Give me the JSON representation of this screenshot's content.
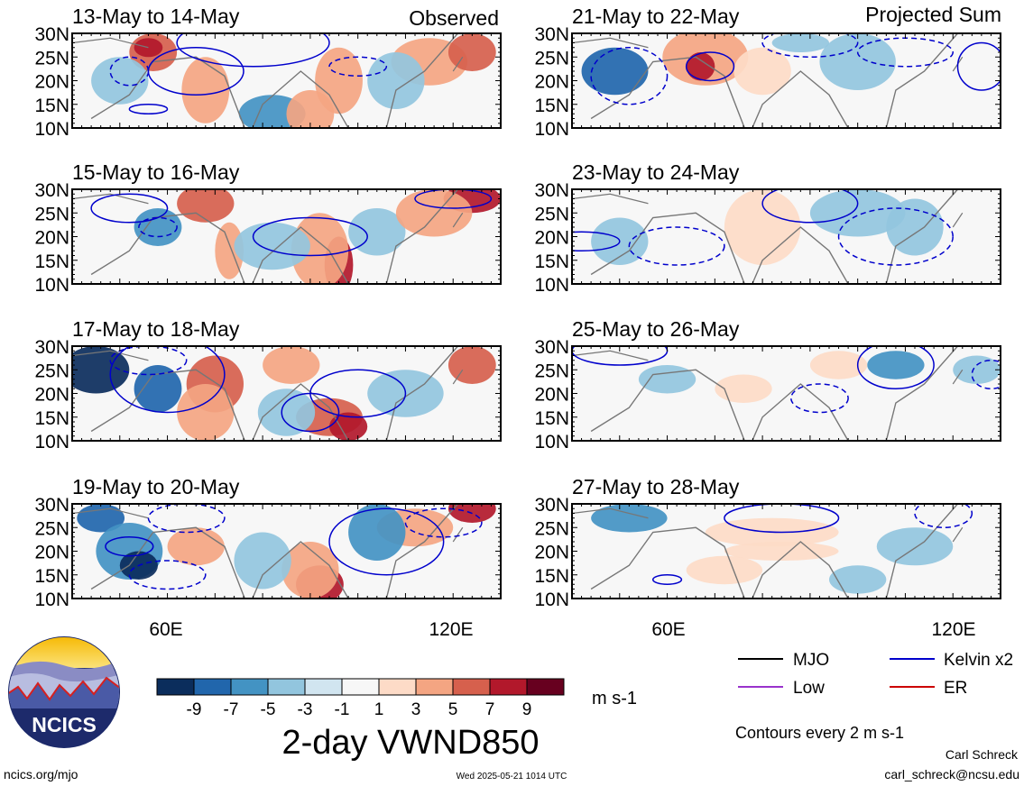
{
  "figure_title": "2-day VWND850",
  "units": "m s-1",
  "column_labels": {
    "observed": "Observed",
    "projected": "Projected Sum"
  },
  "panels": [
    {
      "col": 0,
      "row": 0,
      "label": "13-May to 14-May"
    },
    {
      "col": 0,
      "row": 1,
      "label": "15-May to 16-May"
    },
    {
      "col": 0,
      "row": 2,
      "label": "17-May to 18-May"
    },
    {
      "col": 0,
      "row": 3,
      "label": "19-May to 20-May"
    },
    {
      "col": 1,
      "row": 0,
      "label": "21-May to 22-May"
    },
    {
      "col": 1,
      "row": 1,
      "label": "23-May to 24-May"
    },
    {
      "col": 1,
      "row": 2,
      "label": "25-May to 26-May"
    },
    {
      "col": 1,
      "row": 3,
      "label": "27-May to 28-May"
    }
  ],
  "colorbar": {
    "colors": [
      "#0b2d5c",
      "#2166ac",
      "#4393c3",
      "#92c5de",
      "#d1e5f0",
      "#f7f7f7",
      "#fddbc7",
      "#f4a582",
      "#d6604d",
      "#b2182b",
      "#67001f"
    ],
    "tick_labels": [
      "-9",
      "-7",
      "-5",
      "-3",
      "-1",
      "1",
      "3",
      "5",
      "7",
      "9"
    ]
  },
  "legend": [
    {
      "label": "MJO",
      "color": "#000000"
    },
    {
      "label": "Kelvin x2",
      "color": "#0000cc"
    },
    {
      "label": "Low",
      "color": "#9933cc"
    },
    {
      "label": "ER",
      "color": "#cc0000"
    }
  ],
  "contour_note": "Contours every 2 m s-1",
  "logo_text": "NCICS",
  "url": "ncics.org/mjo",
  "timestamp": "Wed 2025-05-21 1014 UTC",
  "author": "Carl Schreck",
  "email": "carl_schreck@ncsu.edu",
  "chart_data": {
    "type": "heatmap",
    "title": "2-day VWND850",
    "xlabel": "",
    "ylabel": "",
    "x_ticks": [
      "60E",
      "120E"
    ],
    "y_ticks": [
      "30N",
      "25N",
      "20N",
      "15N",
      "10N"
    ],
    "xlim": [
      40,
      130
    ],
    "ylim": [
      10,
      30
    ],
    "colorbar_levels": [
      -9,
      -7,
      -5,
      -3,
      -1,
      1,
      3,
      5,
      7,
      9
    ],
    "units": "m s-1"
  }
}
